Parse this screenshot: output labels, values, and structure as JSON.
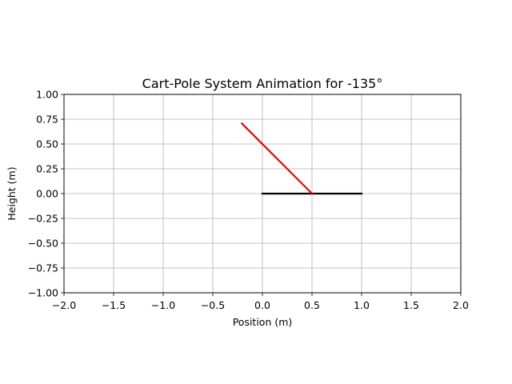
{
  "chart_data": {
    "type": "line",
    "title": "Cart-Pole System Animation for -135°",
    "xlabel": "Position (m)",
    "ylabel": "Height (m)",
    "xlim": [
      -2.0,
      2.0
    ],
    "ylim": [
      -1.0,
      1.0
    ],
    "grid": true,
    "xticks": [
      "−2.0",
      "−1.5",
      "−1.0",
      "−0.5",
      "0.0",
      "0.5",
      "1.0",
      "1.5",
      "2.0"
    ],
    "xtick_values": [
      -2.0,
      -1.5,
      -1.0,
      -0.5,
      0.0,
      0.5,
      1.0,
      1.5,
      2.0
    ],
    "yticks": [
      "−1.00",
      "−0.75",
      "−0.50",
      "−0.25",
      "0.00",
      "0.25",
      "0.50",
      "0.75",
      "1.00"
    ],
    "ytick_values": [
      -1.0,
      -0.75,
      -0.5,
      -0.25,
      0.0,
      0.25,
      0.5,
      0.75,
      1.0
    ],
    "series": [
      {
        "color": "#000000",
        "x": [
          0.0,
          1.0
        ],
        "y": [
          0.0,
          0.0
        ]
      },
      {
        "color": "#ee0000",
        "x": [
          0.5,
          -0.2071
        ],
        "y": [
          0.0,
          0.7071
        ]
      }
    ]
  }
}
